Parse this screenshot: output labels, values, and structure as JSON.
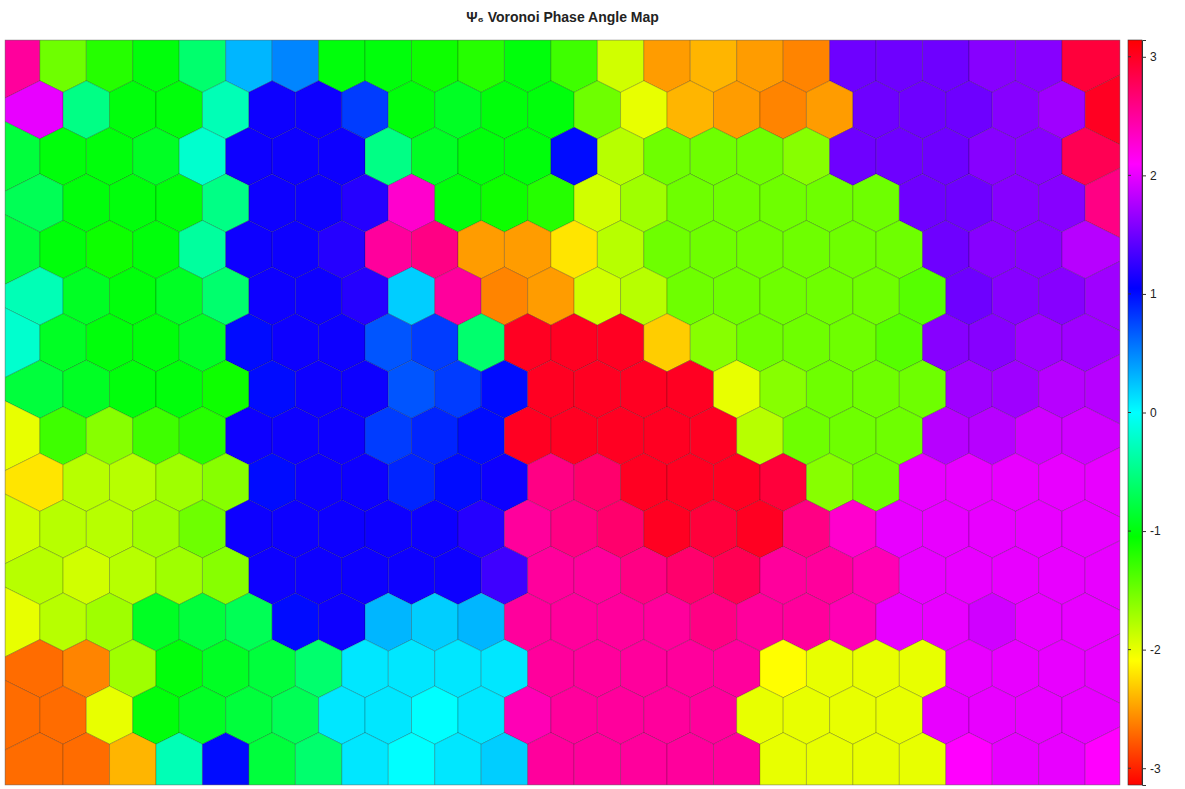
{
  "chart_data": {
    "type": "voronoi",
    "title": "Ψ₆ Voronoi Phase Angle Map",
    "tick_labels": false,
    "cells": [
      [
        2.5,
        -1.5,
        -1.2,
        -1.0,
        -0.6,
        0.3,
        0.5,
        -1.0,
        -1.0,
        -1.1,
        -1.2,
        -1.0,
        -1.3,
        -1.9,
        -2.5,
        -2.4,
        -2.5,
        -2.6,
        1.5,
        1.5,
        1.5,
        1.6,
        1.6,
        2.9
      ],
      [
        2.0,
        -0.5,
        -1.0,
        -1.0,
        -0.3,
        1.1,
        1.1,
        0.8,
        -1.0,
        -0.9,
        -1.0,
        -1.0,
        -1.5,
        -2.0,
        -2.4,
        -2.5,
        -2.6,
        -2.5,
        1.5,
        1.5,
        1.5,
        1.6,
        1.7,
        3.0
      ],
      [
        -0.8,
        -1.0,
        -1.0,
        -0.9,
        -0.2,
        1.1,
        1.1,
        1.1,
        -0.5,
        -0.9,
        -1.0,
        -1.0,
        1.0,
        -1.8,
        -1.5,
        -1.5,
        -1.5,
        -1.6,
        1.5,
        1.5,
        1.5,
        1.6,
        1.6,
        2.8
      ],
      [
        -0.7,
        -1.0,
        -1.0,
        -1.0,
        -0.5,
        1.1,
        1.1,
        1.2,
        2.3,
        -1.0,
        -1.1,
        -1.2,
        -1.9,
        -1.7,
        -1.5,
        -1.5,
        -1.5,
        -1.5,
        -1.5,
        1.5,
        1.5,
        1.6,
        1.6,
        2.6
      ],
      [
        -0.8,
        -1.0,
        -1.1,
        -1.0,
        -0.4,
        1.1,
        1.1,
        1.2,
        2.5,
        2.6,
        -2.5,
        -2.5,
        -2.2,
        -1.8,
        -1.5,
        -1.5,
        -1.5,
        -1.5,
        -1.5,
        -1.5,
        1.5,
        1.6,
        1.6,
        1.8
      ],
      [
        -0.3,
        -0.9,
        -1.0,
        -0.9,
        -0.6,
        1.1,
        1.1,
        1.2,
        0.2,
        2.5,
        -2.6,
        -2.5,
        -1.9,
        -1.8,
        -1.5,
        -1.5,
        -1.5,
        -1.5,
        -1.5,
        -1.4,
        1.5,
        1.6,
        1.6,
        1.7
      ],
      [
        -0.2,
        -0.9,
        -1.0,
        -1.0,
        -0.9,
        1.0,
        1.1,
        1.1,
        0.7,
        0.8,
        -0.6,
        3.0,
        3.0,
        3.0,
        -2.3,
        -1.6,
        -1.5,
        -1.5,
        -1.5,
        -1.4,
        1.6,
        1.6,
        1.7,
        1.7
      ],
      [
        -0.8,
        -0.9,
        -1.0,
        -1.0,
        -1.1,
        1.0,
        1.1,
        1.1,
        0.7,
        0.8,
        1.0,
        3.0,
        3.0,
        3.0,
        3.0,
        -2.0,
        -1.6,
        -1.5,
        -1.5,
        -1.5,
        1.7,
        1.7,
        1.8,
        1.8
      ],
      [
        -2.0,
        -1.3,
        -1.6,
        -1.3,
        -1.2,
        1.1,
        1.1,
        1.1,
        0.8,
        0.9,
        1.0,
        3.0,
        3.0,
        3.0,
        3.0,
        3.0,
        -1.8,
        -1.5,
        -1.5,
        -1.5,
        1.8,
        1.8,
        1.9,
        1.9
      ],
      [
        -2.2,
        -1.8,
        -1.8,
        -1.7,
        -1.6,
        1.0,
        1.1,
        1.1,
        0.9,
        1.0,
        1.1,
        2.6,
        2.7,
        3.0,
        3.0,
        3.0,
        2.9,
        -1.6,
        -1.5,
        2.0,
        2.0,
        2.0,
        2.0,
        2.0
      ],
      [
        -1.9,
        -1.8,
        -1.8,
        -1.7,
        -1.5,
        1.1,
        1.1,
        1.1,
        1.1,
        1.1,
        1.2,
        2.5,
        2.6,
        2.7,
        3.0,
        2.9,
        3.0,
        2.6,
        2.3,
        2.0,
        2.0,
        2.0,
        2.0,
        2.0
      ],
      [
        -1.8,
        -1.9,
        -1.8,
        -1.7,
        -1.6,
        1.1,
        1.1,
        1.1,
        1.1,
        1.1,
        1.3,
        2.5,
        2.5,
        2.6,
        2.7,
        2.8,
        2.5,
        2.5,
        2.4,
        2.0,
        2.0,
        2.0,
        2.0,
        2.0
      ],
      [
        -2.0,
        -1.8,
        -1.7,
        -0.9,
        -0.8,
        -0.7,
        1.0,
        1.1,
        0.3,
        0.2,
        0.3,
        2.5,
        2.5,
        2.5,
        2.5,
        2.6,
        2.5,
        2.5,
        2.4,
        2.0,
        2.0,
        1.9,
        2.0,
        2.0
      ],
      [
        -2.7,
        -2.6,
        -1.7,
        -1.0,
        -0.9,
        -0.8,
        -0.6,
        0.1,
        0.1,
        0.1,
        0.1,
        2.5,
        2.5,
        2.5,
        2.5,
        2.5,
        -2.1,
        -2.0,
        -2.0,
        -2.0,
        2.0,
        2.0,
        2.0,
        2.0
      ],
      [
        -2.7,
        -2.7,
        -2.0,
        -1.0,
        -0.9,
        -0.8,
        -0.7,
        0.1,
        0.1,
        0.0,
        0.1,
        2.4,
        2.5,
        2.5,
        2.5,
        2.5,
        -2.0,
        -2.0,
        -2.0,
        -2.0,
        2.0,
        2.0,
        2.0,
        2.0
      ],
      [
        -2.7,
        -2.7,
        -2.4,
        -0.3,
        1.0,
        -0.8,
        -0.6,
        0.1,
        0.0,
        0.1,
        0.2,
        2.5,
        2.5,
        2.5,
        2.5,
        2.5,
        -2.0,
        -2.0,
        -2.0,
        -2.0,
        2.1,
        2.0,
        2.0,
        2.1
      ]
    ],
    "colorbar": {
      "range": [
        -3.1416,
        3.1416
      ],
      "ticks": [
        -3,
        -2,
        -1,
        0,
        1,
        2,
        3
      ]
    }
  }
}
